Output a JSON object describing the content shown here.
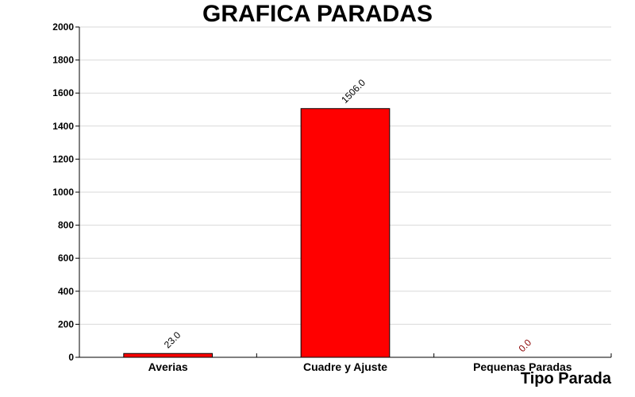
{
  "chart_data": {
    "type": "bar",
    "title": "GRAFICA PARADAS",
    "xlabel": "Tipo Parada",
    "ylabel": "",
    "categories": [
      "Averias",
      "Cuadre y Ajuste",
      "Pequenas Paradas"
    ],
    "values": [
      23.0,
      1506.0,
      0.0
    ],
    "value_labels": [
      "23.0",
      "1506.0",
      "0.0"
    ],
    "ylim": [
      0,
      2000
    ],
    "yticks": [
      0,
      200,
      400,
      600,
      800,
      1000,
      1200,
      1400,
      1600,
      1800,
      2000
    ],
    "grid": true,
    "legend": "none",
    "colors": {
      "bar_fill": "#ff0000",
      "bar_stroke": "#000000",
      "value_label": "#000000",
      "zero_value_label": "#8b0000",
      "grid": "#d9d9d9",
      "axis": "#000000"
    }
  }
}
